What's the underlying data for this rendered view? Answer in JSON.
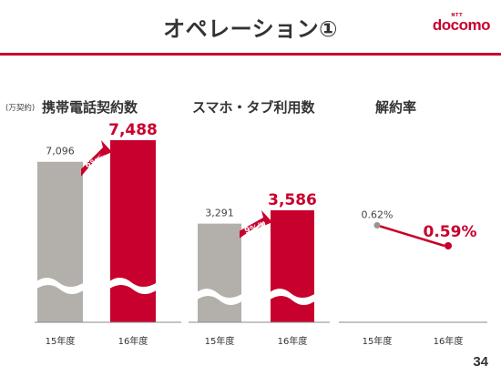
{
  "page": {
    "title": "オペレーション①",
    "logo_sub": "NTT",
    "logo": "docomo",
    "page_number": "34",
    "unit": "(万契約)"
  },
  "colors": {
    "accent": "#c8002d",
    "gray_bar": "#b3afab",
    "arrow": "#c8002d"
  },
  "chart_data": [
    {
      "type": "bar",
      "title": "携帯電話契約数",
      "categories": [
        "15年度",
        "16年度"
      ],
      "values": [
        7096,
        7488
      ],
      "value_labels": [
        "7,096",
        "7,488"
      ],
      "change_label": "6%増",
      "axis_break": true
    },
    {
      "type": "bar",
      "title": "スマホ・タブ利用数",
      "categories": [
        "15年度",
        "16年度"
      ],
      "values": [
        3291,
        3586
      ],
      "value_labels": [
        "3,291",
        "3,586"
      ],
      "change_label": "9%増",
      "axis_break": true
    },
    {
      "type": "line",
      "title": "解約率",
      "categories": [
        "15年度",
        "16年度"
      ],
      "values": [
        0.62,
        0.59
      ],
      "value_labels": [
        "0.62%",
        "0.59%"
      ]
    }
  ]
}
